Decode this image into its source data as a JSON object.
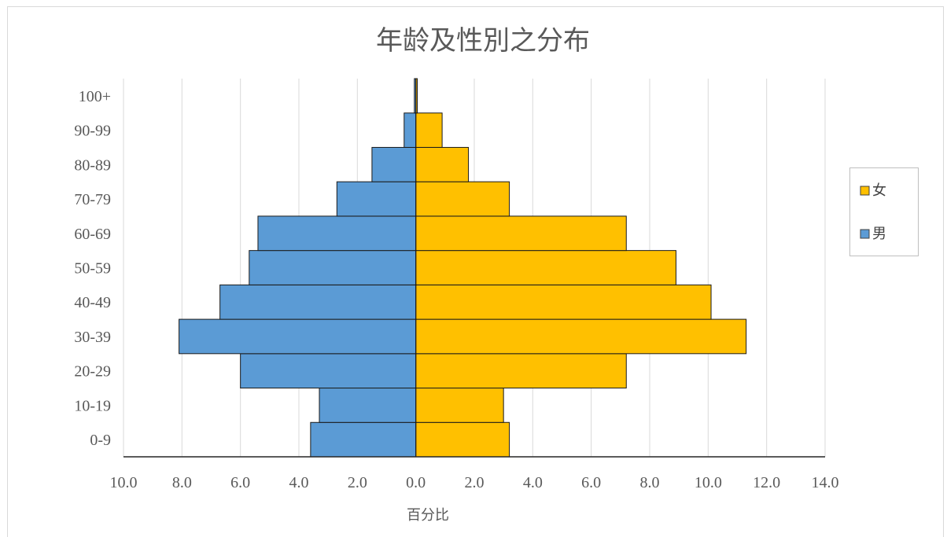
{
  "chart_data": {
    "type": "bar",
    "orientation": "horizontal",
    "layout": "population-pyramid",
    "title": "年龄及性別之分布",
    "xlabel": "百分比",
    "ylabel": "",
    "categories": [
      "0-9",
      "10-19",
      "20-29",
      "30-39",
      "40-49",
      "50-59",
      "60-69",
      "70-79",
      "80-89",
      "90-99",
      "100+"
    ],
    "series": [
      {
        "name": "女",
        "side": "right",
        "color": "#FFC000",
        "values": [
          3.2,
          3.0,
          7.2,
          11.3,
          10.1,
          8.9,
          7.2,
          3.2,
          1.8,
          0.9,
          0.05
        ]
      },
      {
        "name": "男",
        "side": "left",
        "color": "#5B9BD5",
        "values": [
          3.6,
          3.3,
          6.0,
          8.1,
          6.7,
          5.7,
          5.4,
          2.7,
          1.5,
          0.4,
          0.05
        ]
      }
    ],
    "xlim": [
      -10,
      14
    ],
    "x_ticks": [
      "10.0",
      "8.0",
      "6.0",
      "4.0",
      "2.0",
      "0.0",
      "2.0",
      "4.0",
      "6.0",
      "8.0",
      "10.0",
      "12.0",
      "14.0"
    ],
    "grid": true,
    "legend_position": "right",
    "legend": [
      "女",
      "男"
    ]
  }
}
